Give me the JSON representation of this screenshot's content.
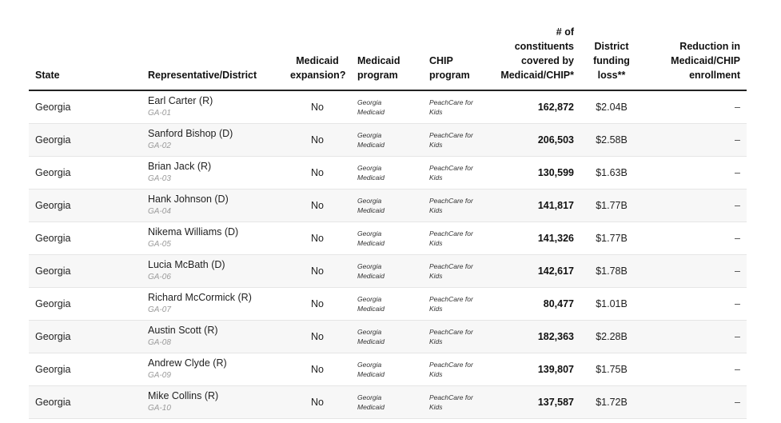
{
  "headers": {
    "state": "State",
    "rep": "Representative/District",
    "expansion": [
      "Medicaid",
      "expansion?"
    ],
    "medicaid": [
      "Medicaid",
      "program"
    ],
    "chip": [
      "CHIP",
      "program"
    ],
    "constituents": [
      "# of",
      "constituents",
      "covered by",
      "Medicaid/CHIP*"
    ],
    "funding": [
      "District",
      "funding",
      "loss**"
    ],
    "reduction": [
      "Reduction in",
      "Medicaid/CHIP",
      "enrollment"
    ]
  },
  "rows": [
    {
      "state": "Georgia",
      "name": "Earl Carter (R)",
      "district": "GA-01",
      "expansion": "No",
      "medicaid": [
        "Georgia",
        "Medicaid"
      ],
      "chip": [
        "PeachCare for",
        "Kids"
      ],
      "constituents": "162,872",
      "funding": "$2.04B",
      "reduction": "–"
    },
    {
      "state": "Georgia",
      "name": "Sanford Bishop (D)",
      "district": "GA-02",
      "expansion": "No",
      "medicaid": [
        "Georgia",
        "Medicaid"
      ],
      "chip": [
        "PeachCare for",
        "Kids"
      ],
      "constituents": "206,503",
      "funding": "$2.58B",
      "reduction": "–"
    },
    {
      "state": "Georgia",
      "name": "Brian Jack (R)",
      "district": "GA-03",
      "expansion": "No",
      "medicaid": [
        "Georgia",
        "Medicaid"
      ],
      "chip": [
        "PeachCare for",
        "Kids"
      ],
      "constituents": "130,599",
      "funding": "$1.63B",
      "reduction": "–"
    },
    {
      "state": "Georgia",
      "name": "Hank Johnson (D)",
      "district": "GA-04",
      "expansion": "No",
      "medicaid": [
        "Georgia",
        "Medicaid"
      ],
      "chip": [
        "PeachCare for",
        "Kids"
      ],
      "constituents": "141,817",
      "funding": "$1.77B",
      "reduction": "–"
    },
    {
      "state": "Georgia",
      "name": "Nikema Williams (D)",
      "district": "GA-05",
      "expansion": "No",
      "medicaid": [
        "Georgia",
        "Medicaid"
      ],
      "chip": [
        "PeachCare for",
        "Kids"
      ],
      "constituents": "141,326",
      "funding": "$1.77B",
      "reduction": "–"
    },
    {
      "state": "Georgia",
      "name": "Lucia McBath (D)",
      "district": "GA-06",
      "expansion": "No",
      "medicaid": [
        "Georgia",
        "Medicaid"
      ],
      "chip": [
        "PeachCare for",
        "Kids"
      ],
      "constituents": "142,617",
      "funding": "$1.78B",
      "reduction": "–"
    },
    {
      "state": "Georgia",
      "name": "Richard McCormick (R)",
      "district": "GA-07",
      "expansion": "No",
      "medicaid": [
        "Georgia",
        "Medicaid"
      ],
      "chip": [
        "PeachCare for",
        "Kids"
      ],
      "constituents": "80,477",
      "funding": "$1.01B",
      "reduction": "–"
    },
    {
      "state": "Georgia",
      "name": "Austin Scott (R)",
      "district": "GA-08",
      "expansion": "No",
      "medicaid": [
        "Georgia",
        "Medicaid"
      ],
      "chip": [
        "PeachCare for",
        "Kids"
      ],
      "constituents": "182,363",
      "funding": "$2.28B",
      "reduction": "–"
    },
    {
      "state": "Georgia",
      "name": "Andrew Clyde (R)",
      "district": "GA-09",
      "expansion": "No",
      "medicaid": [
        "Georgia",
        "Medicaid"
      ],
      "chip": [
        "PeachCare for",
        "Kids"
      ],
      "constituents": "139,807",
      "funding": "$1.75B",
      "reduction": "–"
    },
    {
      "state": "Georgia",
      "name": "Mike Collins (R)",
      "district": "GA-10",
      "expansion": "No",
      "medicaid": [
        "Georgia",
        "Medicaid"
      ],
      "chip": [
        "PeachCare for",
        "Kids"
      ],
      "constituents": "137,587",
      "funding": "$1.72B",
      "reduction": "–"
    }
  ]
}
